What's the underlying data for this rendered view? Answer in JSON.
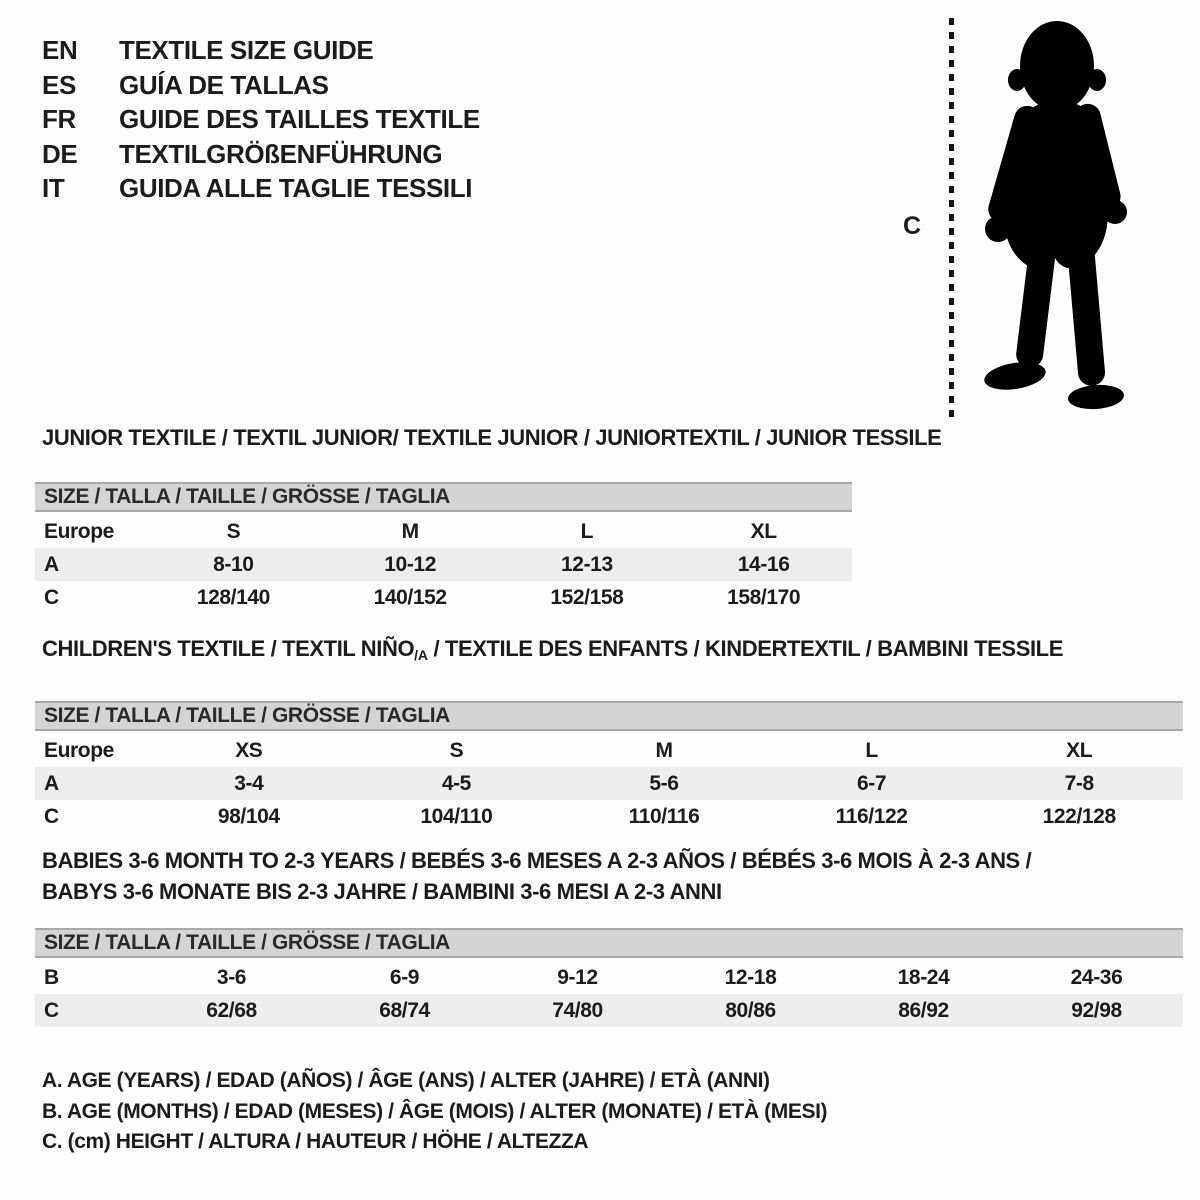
{
  "languages": [
    {
      "code": "EN",
      "title": "TEXTILE SIZE GUIDE"
    },
    {
      "code": "ES",
      "title": "GUÍA DE TALLAS"
    },
    {
      "code": "FR",
      "title": "GUIDE DES TAILLES TEXTILE"
    },
    {
      "code": "DE",
      "title": "TEXTILGRÖßENFÜHRUNG"
    },
    {
      "code": "IT",
      "title": "GUIDA ALLE TAGLIE TESSILI"
    }
  ],
  "figure": {
    "height_label": "C"
  },
  "junior": {
    "title": "JUNIOR TEXTILE / TEXTIL JUNIOR/ TEXTILE JUNIOR / JUNIORTEXTIL / JUNIOR TESSILE",
    "size_header": "SIZE / TALLA / TAILLE / GRÖSSE / TAGLIA",
    "rows": [
      {
        "label": "Europe",
        "values": [
          "S",
          "M",
          "L",
          "XL"
        ],
        "shaded": false
      },
      {
        "label": "A",
        "values": [
          "8-10",
          "10-12",
          "12-13",
          "14-16"
        ],
        "shaded": true
      },
      {
        "label": "C",
        "values": [
          "128/140",
          "140/152",
          "152/158",
          "158/170"
        ],
        "shaded": false
      }
    ]
  },
  "children": {
    "title_pre": "CHILDREN'S TEXTILE / TEXTIL NIÑO",
    "title_sub": "/A",
    "title_post": " / TEXTILE DES ENFANTS / KINDERTEXTIL / BAMBINI TESSILE",
    "size_header": "SIZE / TALLA / TAILLE / GRÖSSE / TAGLIA",
    "rows": [
      {
        "label": "Europe",
        "values": [
          "XS",
          "S",
          "M",
          "L",
          "XL"
        ],
        "shaded": false
      },
      {
        "label": "A",
        "values": [
          "3-4",
          "4-5",
          "5-6",
          "6-7",
          "7-8"
        ],
        "shaded": true
      },
      {
        "label": "C",
        "values": [
          "98/104",
          "104/110",
          "110/116",
          "116/122",
          "122/128"
        ],
        "shaded": false
      }
    ]
  },
  "babies": {
    "title_line1": "BABIES 3-6 MONTH TO 2-3 YEARS / BEBÉS 3-6 MESES A 2-3 AÑOS / BÉBÉS 3-6 MOIS À 2-3 ANS /",
    "title_line2": "BABYS 3-6 MONATE BIS 2-3 JAHRE / BAMBINI 3-6 MESI A 2-3 ANNI",
    "size_header": "SIZE / TALLA / TAILLE / GRÖSSE / TAGLIA",
    "rows": [
      {
        "label": "B",
        "values": [
          "3-6",
          "6-9",
          "9-12",
          "12-18",
          "18-24",
          "24-36"
        ],
        "shaded": false
      },
      {
        "label": "C",
        "values": [
          "62/68",
          "68/74",
          "74/80",
          "80/86",
          "86/92",
          "92/98"
        ],
        "shaded": true
      }
    ]
  },
  "legend": {
    "line_a": "A. AGE (YEARS) / EDAD (AÑOS) / ÂGE (ANS) / ALTER (JAHRE) / ETÀ (ANNI)",
    "line_b": "B. AGE (MONTHS) / EDAD (MESES) / ÂGE (MOIS) / ALTER (MONATE) / ETÀ (MESI)",
    "line_c": "C. (cm) HEIGHT / ALTURA / HAUTEUR / HÖHE / ALTEZZA"
  },
  "colors": {
    "header_bar": "#d4d4d4",
    "header_bar_border": "#a8a8a8",
    "shaded_row": "#ededed",
    "text": "#1c1c1c",
    "silhouette": "#000000"
  }
}
